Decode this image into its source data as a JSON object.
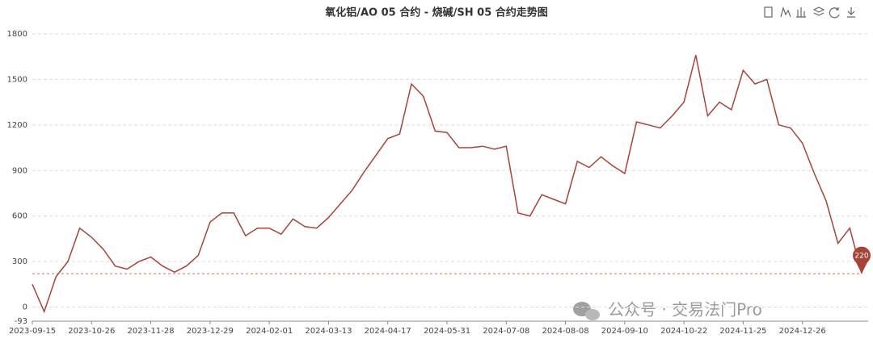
{
  "chart_data": {
    "type": "line",
    "title": "氧化铝/AO 05 合约 - 烧碱/SH 05 合约走势图",
    "categories": [
      "2023-09-15",
      null,
      null,
      null,
      null,
      "2023-10-26",
      null,
      null,
      null,
      null,
      "2023-11-28",
      null,
      null,
      null,
      null,
      "2023-12-29",
      null,
      null,
      null,
      null,
      "2024-02-01",
      null,
      null,
      null,
      null,
      "2024-03-13",
      null,
      null,
      null,
      null,
      "2024-04-17",
      null,
      null,
      null,
      null,
      "2024-05-31",
      null,
      null,
      null,
      null,
      "2024-07-08",
      null,
      null,
      null,
      null,
      "2024-08-08",
      null,
      null,
      null,
      null,
      "2024-09-10",
      null,
      null,
      null,
      null,
      "2024-10-22",
      null,
      null,
      null,
      null,
      "2024-11-25",
      null,
      null,
      null,
      null,
      "2024-12-26",
      null,
      null,
      null,
      null,
      null
    ],
    "values": [
      150,
      -30,
      200,
      300,
      520,
      460,
      380,
      270,
      250,
      300,
      330,
      270,
      230,
      270,
      340,
      560,
      620,
      620,
      470,
      520,
      520,
      480,
      580,
      530,
      520,
      590,
      680,
      770,
      890,
      1000,
      1110,
      1140,
      1470,
      1390,
      1160,
      1150,
      1050,
      1050,
      1060,
      1040,
      1060,
      620,
      600,
      740,
      710,
      680,
      960,
      920,
      990,
      930,
      880,
      1220,
      1200,
      1180,
      1260,
      1350,
      1660,
      1260,
      1350,
      1300,
      1560,
      1470,
      1500,
      1200,
      1180,
      1080,
      880,
      700,
      420,
      520,
      220
    ],
    "color": "#a8433a",
    "mark_line": 220,
    "ylim": [
      -93,
      1800
    ],
    "yticks": [
      -93,
      0,
      300,
      600,
      900,
      1200,
      1500,
      1800
    ],
    "grid": true,
    "watermark": "公众号 · 交易法门Pro"
  }
}
